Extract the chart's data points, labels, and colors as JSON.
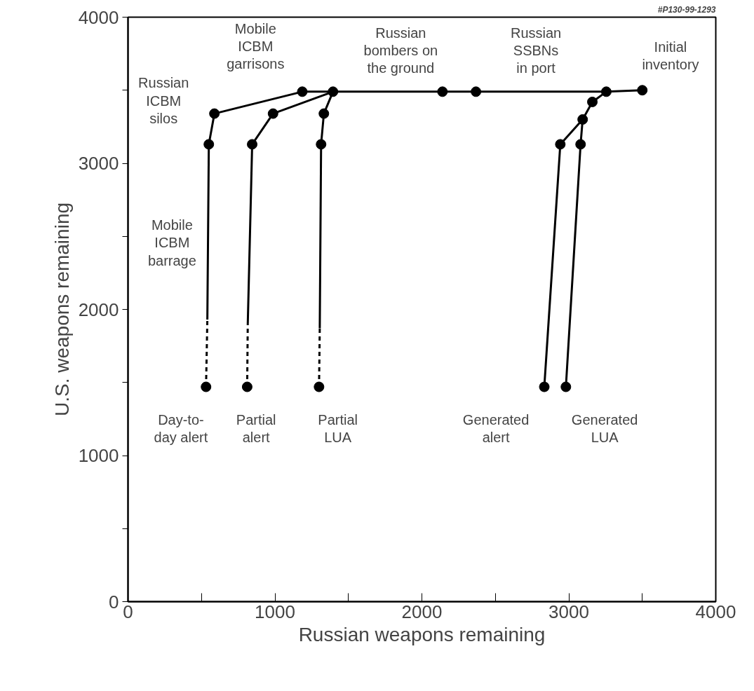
{
  "chart_data": {
    "type": "line",
    "xlabel": "Russian weapons remaining",
    "ylabel": "U.S. weapons remaining",
    "xlim": [
      0,
      4000
    ],
    "ylim": [
      0,
      4000
    ],
    "xticks": [
      0,
      {
        "value": 500,
        "label": null
      },
      1000,
      {
        "value": 1500,
        "label": null
      },
      2000,
      {
        "value": 2500,
        "label": null
      },
      3000,
      {
        "value": 3500,
        "label": null
      },
      4000
    ],
    "yticks": [
      0,
      {
        "value": 500,
        "label": null
      },
      1000,
      {
        "value": 1500,
        "label": null
      },
      2000,
      {
        "value": 2500,
        "label": null
      },
      3000,
      {
        "value": 3500,
        "label": null
      },
      4000
    ],
    "grid": false,
    "marker": "none",
    "line_style": "solid",
    "series": [
      {
        "color": "#000000",
        "x": [
          1186,
          1395,
          2140,
          2368,
          3255,
          3500
        ],
        "values": [
          3490,
          3490,
          3490,
          3490,
          3490,
          3500
        ]
      },
      {
        "color": "#000000",
        "x": [
          540,
          550,
          588,
          1186
        ],
        "values": [
          1930,
          3130,
          3340,
          3490
        ]
      },
      {
        "color": "#000000",
        "x": [
          531,
          540
        ],
        "values": [
          1470,
          1930
        ],
        "line_style": "dashed"
      },
      {
        "color": "#000000",
        "x": [
          815,
          845,
          987,
          1395
        ],
        "values": [
          1900,
          3130,
          3340,
          3490
        ]
      },
      {
        "color": "#000000",
        "x": [
          811,
          815
        ],
        "values": [
          1470,
          1900
        ],
        "line_style": "dashed"
      },
      {
        "color": "#000000",
        "x": [
          1305,
          1314,
          1333,
          1395
        ],
        "values": [
          1870,
          3130,
          3340,
          3490
        ]
      },
      {
        "color": "#000000",
        "x": [
          1300,
          1305
        ],
        "values": [
          1470,
          1870
        ],
        "line_style": "dashed"
      },
      {
        "color": "#000000",
        "x": [
          2833,
          2942,
          3094,
          3160,
          3255
        ],
        "values": [
          1470,
          3130,
          3300,
          3420,
          3490
        ]
      },
      {
        "color": "#000000",
        "x": [
          2980,
          3080,
          3094
        ],
        "values": [
          1470,
          3130,
          3300
        ]
      },
      {
        "type": "scatter",
        "marker": "circle",
        "color": "#000000",
        "x": [
          1186,
          1395,
          2140,
          2368,
          3255,
          3500,
          550,
          588,
          531,
          845,
          987,
          811,
          1314,
          1333,
          1300,
          2833,
          2942,
          3094,
          3160,
          2980,
          3080
        ],
        "values": [
          3490,
          3490,
          3490,
          3490,
          3490,
          3500,
          3130,
          3340,
          1470,
          3130,
          3340,
          1470,
          3130,
          3340,
          1470,
          1470,
          3130,
          3300,
          3420,
          1470,
          3130
        ]
      }
    ],
    "annotations": [
      "Russian\nICBM\nsilos",
      "Mobile\nICBM\ngarrisons",
      "Russian\nbombers on\nthe ground",
      "Russian\nSSBNs\nin port",
      "Initial\ninventory",
      "Mobile\nICBM\nbarrage",
      "Day-to-\nday alert",
      "Partial\nalert",
      "Partial\nLUA",
      "Generated\nalert",
      "Generated\nLUA",
      "#P130-99-1293"
    ]
  }
}
